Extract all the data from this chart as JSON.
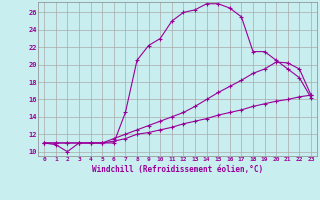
{
  "xlabel": "Windchill (Refroidissement éolien,°C)",
  "background_color": "#c8eef0",
  "line_color": "#990099",
  "grid_color": "#aaaaaa",
  "xlim": [
    -0.5,
    23.5
  ],
  "ylim": [
    9.5,
    27.2
  ],
  "xticks": [
    0,
    1,
    2,
    3,
    4,
    5,
    6,
    7,
    8,
    9,
    10,
    11,
    12,
    13,
    14,
    15,
    16,
    17,
    18,
    19,
    20,
    21,
    22,
    23
  ],
  "yticks": [
    10,
    12,
    14,
    16,
    18,
    20,
    22,
    24,
    26
  ],
  "curve1_x": [
    0,
    1,
    2,
    3,
    4,
    5,
    6,
    7,
    8,
    9,
    10,
    11,
    12,
    13,
    14,
    15,
    16,
    17,
    18,
    19,
    20,
    21,
    22,
    23
  ],
  "curve1_y": [
    11.0,
    10.8,
    10.0,
    11.0,
    11.0,
    11.0,
    11.0,
    14.5,
    20.5,
    22.2,
    23.0,
    25.0,
    26.0,
    26.3,
    27.0,
    27.0,
    26.5,
    25.5,
    21.5,
    21.5,
    20.5,
    19.5,
    18.5,
    16.2
  ],
  "curve2_x": [
    0,
    1,
    2,
    3,
    4,
    5,
    6,
    7,
    8,
    9,
    10,
    11,
    12,
    13,
    14,
    15,
    16,
    17,
    18,
    19,
    20,
    21,
    22,
    23
  ],
  "curve2_y": [
    11.0,
    11.0,
    11.0,
    11.0,
    11.0,
    11.0,
    11.5,
    12.0,
    12.5,
    13.0,
    13.5,
    14.0,
    14.5,
    15.2,
    16.0,
    16.8,
    17.5,
    18.2,
    19.0,
    19.5,
    20.3,
    20.2,
    19.5,
    16.5
  ],
  "curve3_x": [
    0,
    1,
    2,
    3,
    4,
    5,
    6,
    7,
    8,
    9,
    10,
    11,
    12,
    13,
    14,
    15,
    16,
    17,
    18,
    19,
    20,
    21,
    22,
    23
  ],
  "curve3_y": [
    11.0,
    11.0,
    11.0,
    11.0,
    11.0,
    11.0,
    11.2,
    11.5,
    12.0,
    12.2,
    12.5,
    12.8,
    13.2,
    13.5,
    13.8,
    14.2,
    14.5,
    14.8,
    15.2,
    15.5,
    15.8,
    16.0,
    16.3,
    16.5
  ]
}
